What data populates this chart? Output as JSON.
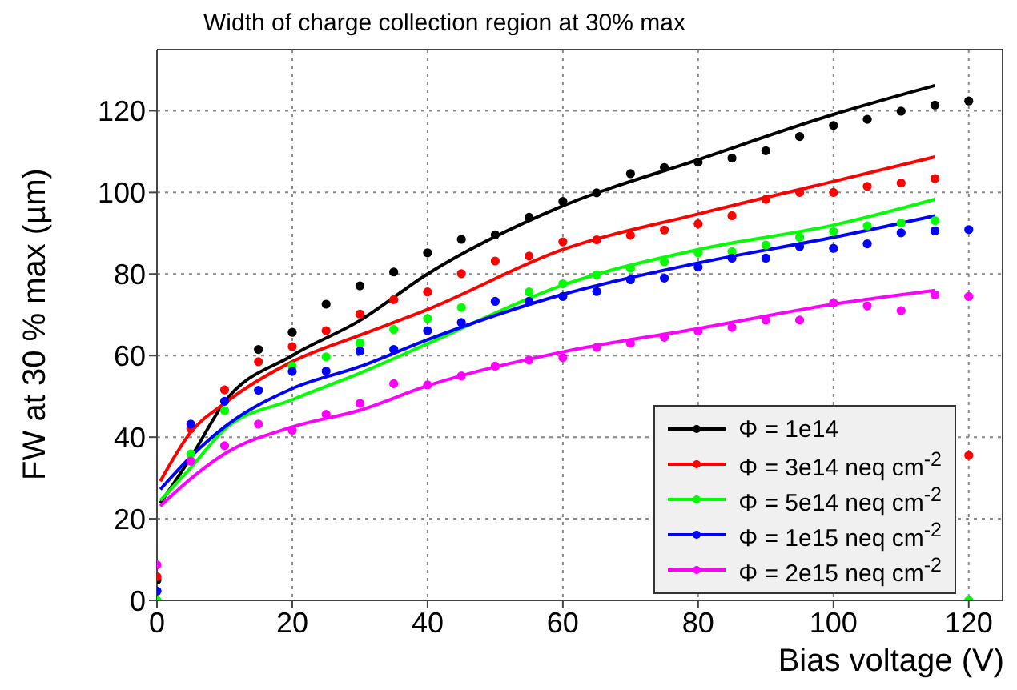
{
  "chart_data": {
    "type": "scatter",
    "title": "Width of charge collection region at 30% max",
    "xlabel": "Bias voltage (V)",
    "ylabel": "FW at 30 % max (µm)",
    "xlim": [
      0,
      125
    ],
    "ylim": [
      0,
      135
    ],
    "xticks": [
      0,
      20,
      40,
      60,
      80,
      100,
      120
    ],
    "yticks": [
      0,
      20,
      40,
      60,
      80,
      100,
      120
    ],
    "grid": true,
    "legend": "bottom right",
    "marker": "circle",
    "series": [
      {
        "name": "Φ = 1e14",
        "color": "#000000",
        "x": [
          0,
          5,
          10,
          15,
          20,
          25,
          30,
          35,
          40,
          45,
          50,
          55,
          60,
          65,
          70,
          75,
          80,
          85,
          90,
          95,
          100,
          105,
          110,
          115,
          120
        ],
        "values": [
          5,
          null,
          null,
          61.5,
          65.7,
          72.6,
          77.1,
          80.5,
          85.2,
          88.5,
          89.6,
          93.9,
          97.8,
          99.9,
          104.6,
          106.1,
          107.4,
          108.4,
          110.2,
          113.7,
          116.4,
          117.9,
          119.9,
          121.4,
          122.4
        ]
      },
      {
        "name": "Φ = 3e14 neq cm$^{-2}$",
        "color": "#ff0000",
        "x": [
          0,
          5,
          10,
          15,
          20,
          25,
          30,
          35,
          40,
          45,
          50,
          55,
          60,
          65,
          70,
          75,
          80,
          85,
          90,
          95,
          100,
          105,
          110,
          115,
          120
        ],
        "values": [
          5.8,
          42.1,
          51.6,
          58.5,
          62.2,
          66.1,
          70.2,
          73.7,
          75.6,
          80.1,
          83.2,
          84.4,
          87.9,
          88.4,
          89.5,
          90.8,
          92.3,
          94.3,
          98.3,
          100,
          100,
          101.5,
          102.3,
          103.4,
          35.5
        ]
      },
      {
        "name": "Φ = 5e14 neq cm$^{-2}$",
        "color": "#00ff00",
        "x": [
          0,
          5,
          10,
          15,
          20,
          25,
          30,
          35,
          40,
          45,
          50,
          55,
          60,
          65,
          70,
          75,
          80,
          85,
          90,
          95,
          100,
          105,
          110,
          115,
          120
        ],
        "values": [
          0,
          35.9,
          46.5,
          null,
          57.4,
          59.7,
          63.1,
          66.4,
          69.1,
          71.8,
          null,
          75.6,
          77.6,
          79.8,
          81.4,
          83,
          85.2,
          85.5,
          87.1,
          89,
          90.4,
          91.8,
          92.5,
          93.1,
          0
        ]
      },
      {
        "name": "Φ = 1e15 neq cm$^{-2}$",
        "color": "#0000ff",
        "x": [
          0,
          5,
          10,
          15,
          20,
          25,
          30,
          35,
          40,
          45,
          50,
          55,
          60,
          65,
          70,
          75,
          80,
          85,
          90,
          95,
          100,
          105,
          110,
          115,
          120
        ],
        "values": [
          2.3,
          43.2,
          48.8,
          51.5,
          56.1,
          56.2,
          61.1,
          61.5,
          66.1,
          68.1,
          73.3,
          73.3,
          74.5,
          75.7,
          78.6,
          79,
          81.7,
          83.9,
          83.9,
          86.7,
          86.3,
          87.4,
          90.1,
          90.6,
          90.9
        ]
      },
      {
        "name": "Φ = 2e15 neq cm$^{-2}$",
        "color": "#ff00ff",
        "x": [
          0,
          5,
          10,
          15,
          20,
          25,
          30,
          35,
          40,
          45,
          50,
          55,
          60,
          65,
          70,
          75,
          80,
          85,
          90,
          95,
          100,
          105,
          110,
          115,
          120
        ],
        "values": [
          8.7,
          34.1,
          37.9,
          43.2,
          41.7,
          45.6,
          48.3,
          53.1,
          52.8,
          55,
          57.4,
          58.9,
          59.5,
          62,
          63,
          64.5,
          66,
          66.9,
          68.7,
          68.7,
          72.9,
          72.2,
          71,
          74.9,
          74.5
        ]
      },
      {
        "color": "#000000",
        "type": "line",
        "marker": "none",
        "x": [
          0.5,
          5,
          10,
          20,
          30,
          40,
          60,
          80,
          100,
          115
        ],
        "values": [
          23.8,
          35,
          48.6,
          60,
          68.6,
          80,
          96.7,
          108,
          119.1,
          126.2
        ]
      },
      {
        "color": "#ff0000",
        "type": "line",
        "marker": "none",
        "x": [
          0.5,
          5,
          10,
          20,
          30,
          40,
          60,
          80,
          100,
          115
        ],
        "values": [
          29.2,
          41.2,
          48.3,
          58.5,
          65,
          71.3,
          86,
          94.7,
          102.7,
          108.7
        ]
      },
      {
        "color": "#00ff00",
        "type": "line",
        "marker": "none",
        "x": [
          0.5,
          5,
          10,
          20,
          30,
          40,
          60,
          80,
          100,
          115
        ],
        "values": [
          24.5,
          32.5,
          41.9,
          49.2,
          55.7,
          62.9,
          77.3,
          86,
          92,
          98.3
        ]
      },
      {
        "color": "#0000ff",
        "type": "line",
        "marker": "none",
        "x": [
          0.5,
          5,
          10,
          20,
          30,
          40,
          60,
          80,
          100,
          115
        ],
        "values": [
          27.2,
          35.2,
          42.5,
          51.9,
          57.3,
          63.9,
          75,
          82.7,
          89,
          94.3
        ]
      },
      {
        "color": "#ff00ff",
        "type": "line",
        "marker": "none",
        "x": [
          0.5,
          5,
          10,
          20,
          30,
          40,
          60,
          80,
          100,
          115
        ],
        "values": [
          23.1,
          29.8,
          35.9,
          42.5,
          46.6,
          52.6,
          60.9,
          66.6,
          72.6,
          76
        ]
      }
    ]
  }
}
